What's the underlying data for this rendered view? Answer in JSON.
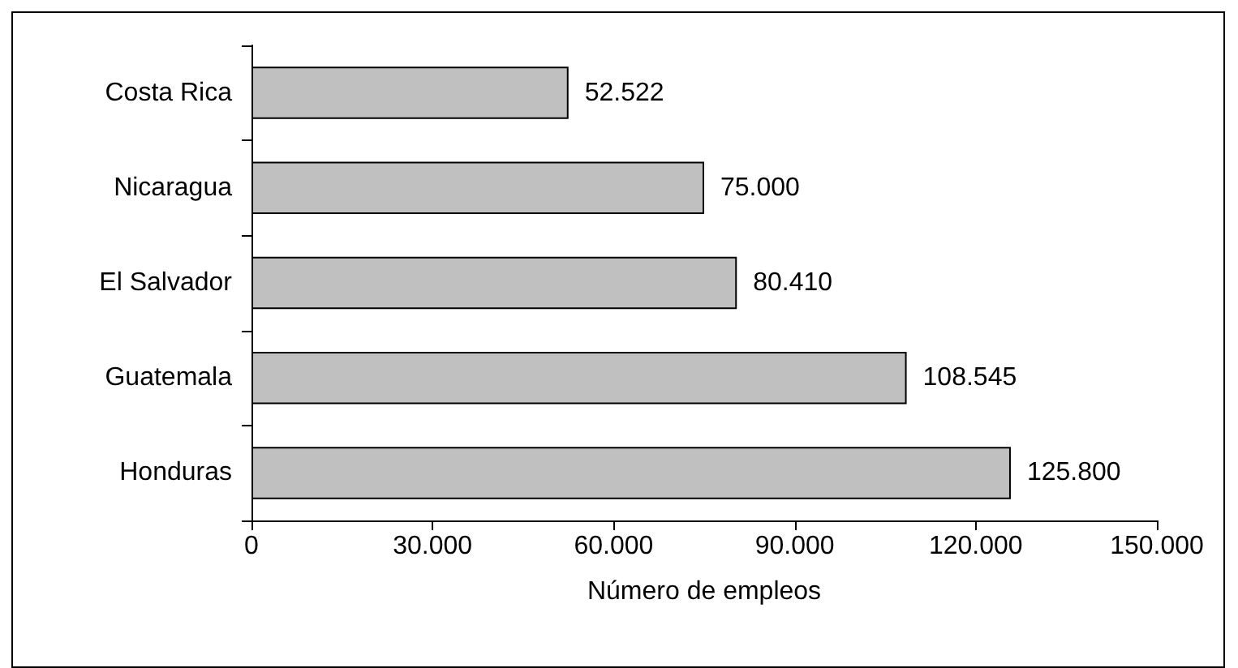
{
  "chart_data": {
    "type": "bar",
    "orientation": "horizontal",
    "xlabel": "Número de empleos",
    "categories": [
      "Costa Rica",
      "Nicaragua",
      "El Salvador",
      "Guatemala",
      "Honduras"
    ],
    "values": [
      52522,
      75000,
      80410,
      108545,
      125800
    ],
    "value_labels": [
      "52.522",
      "75.000",
      "80.410",
      "108.545",
      "125.800"
    ],
    "color": "#c0c0c0",
    "xlim": [
      0,
      150000
    ],
    "xticks": [
      0,
      {
        "value": 30000,
        "label": "30.000"
      },
      {
        "value": 60000,
        "label": "60.000"
      },
      {
        "value": 90000,
        "label": "90.000"
      },
      {
        "value": 120000,
        "label": "120.000"
      },
      {
        "value": 150000,
        "label": "150.000"
      }
    ],
    "grid": false
  }
}
